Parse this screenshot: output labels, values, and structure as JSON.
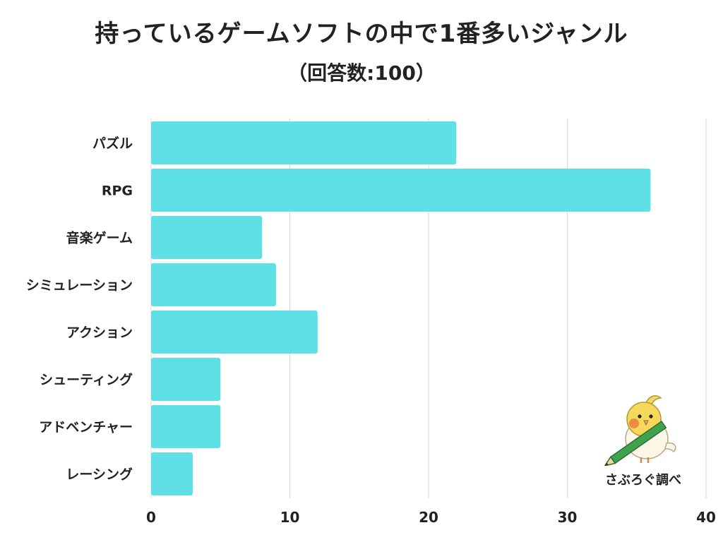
{
  "title": "持っているゲームソフトの中で1番多いジャンル",
  "subtitle": "（回答数:100）",
  "credit": "さぶろぐ調べ",
  "colors": {
    "bar": "#5ee0e6",
    "grid": "#d9d9d9",
    "text": "#222222"
  },
  "chart_data": {
    "type": "bar",
    "orientation": "horizontal",
    "categories": [
      "パズル",
      "RPG",
      "音楽ゲーム",
      "シミュレーション",
      "アクション",
      "シューティング",
      "アドベンチャー",
      "レーシング"
    ],
    "values": [
      22,
      36,
      8,
      9,
      12,
      5,
      5,
      3
    ],
    "xlim": [
      0,
      40
    ],
    "xticks": [
      0,
      10,
      20,
      30,
      40
    ],
    "grid": true,
    "legend": "none"
  }
}
